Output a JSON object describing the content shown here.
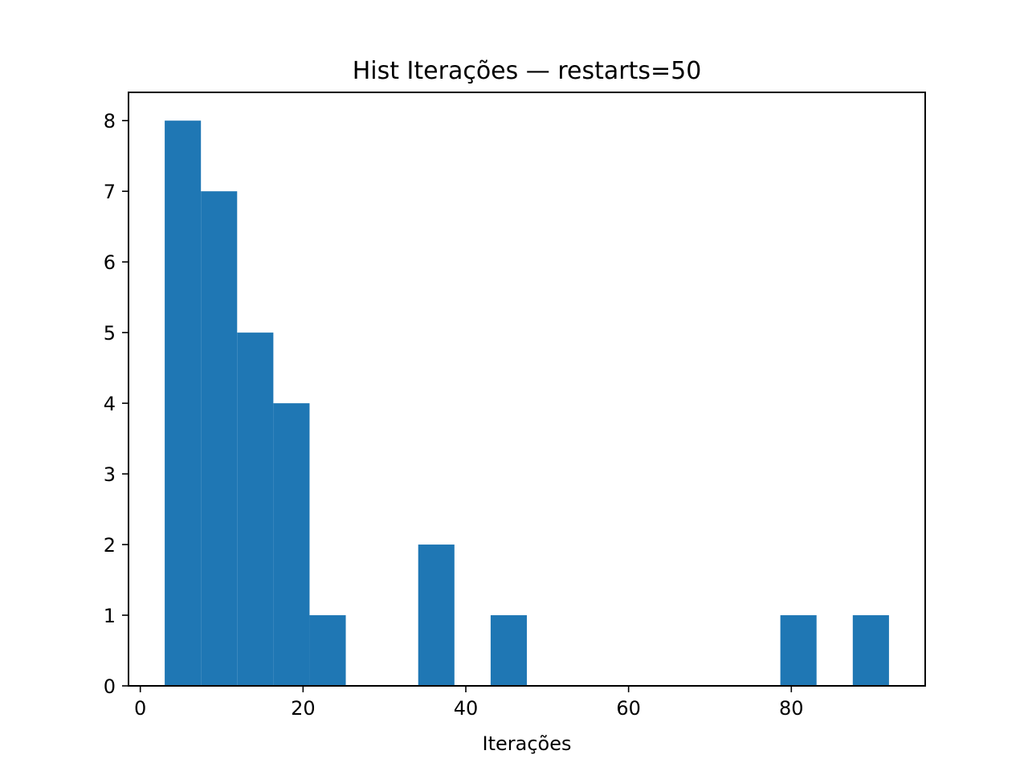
{
  "chart_data": {
    "type": "bar",
    "title": "Hist Iterações — restarts=50",
    "xlabel": "Iterações",
    "ylabel": "",
    "xlim": [
      -1.45,
      96.45
    ],
    "ylim": [
      0,
      8.4
    ],
    "x_ticks": [
      0,
      20,
      40,
      60,
      80
    ],
    "y_ticks": [
      0,
      1,
      2,
      3,
      4,
      5,
      6,
      7,
      8
    ],
    "bin_edges": [
      3,
      7.45,
      11.9,
      16.35,
      20.8,
      25.25,
      29.7,
      34.15,
      38.6,
      43.05,
      47.5,
      51.95,
      56.4,
      60.85,
      65.3,
      69.75,
      74.2,
      78.65,
      83.1,
      87.55,
      92
    ],
    "values": [
      8,
      7,
      5,
      4,
      1,
      0,
      0,
      2,
      0,
      1,
      0,
      0,
      0,
      0,
      0,
      0,
      0,
      1,
      0,
      1
    ],
    "bar_color": "#1f77b4",
    "grid": false,
    "legend": "none"
  }
}
